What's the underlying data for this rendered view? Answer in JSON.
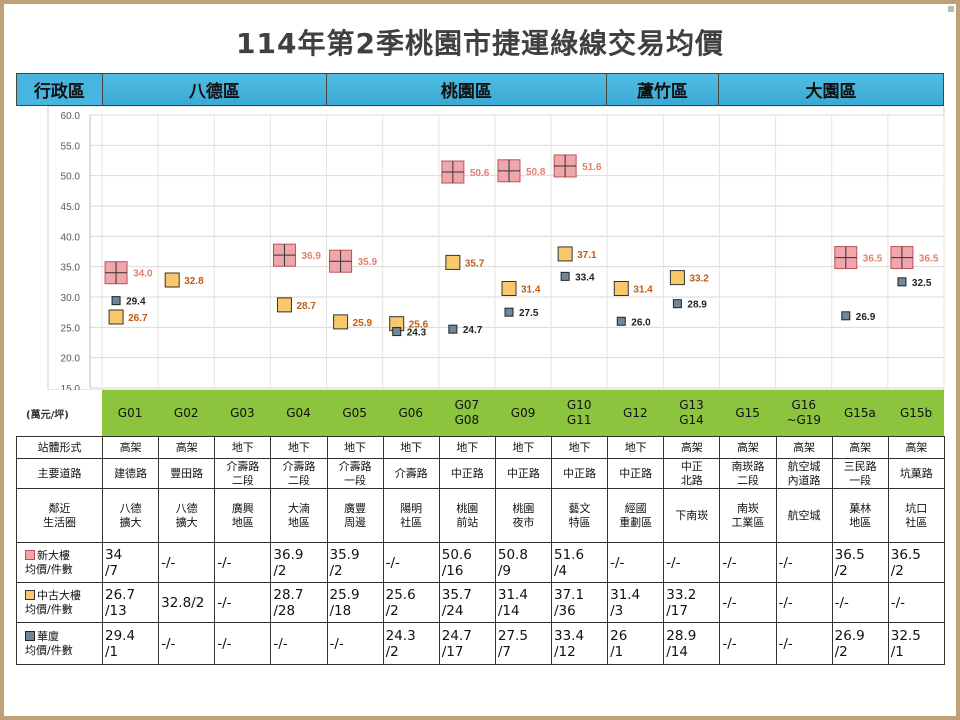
{
  "title": "114年第2季桃園市捷運綠線交易均價",
  "districts": {
    "label": "行政區",
    "items": [
      {
        "name": "八德區",
        "span": 4
      },
      {
        "name": "桃園區",
        "span": 5
      },
      {
        "name": "蘆竹區",
        "span": 2
      },
      {
        "name": "大園區",
        "span": 4
      }
    ]
  },
  "unit_label": "(萬元/坪)",
  "colors": {
    "new": "#f0a7ab",
    "mid": "#f8c86a",
    "old": "#6e8899",
    "band": "#8cc43e",
    "header": "#48b5df"
  },
  "chart_data": {
    "type": "scatter",
    "categories": [
      "G01",
      "G02",
      "G03",
      "G04",
      "G05",
      "G06",
      "G07\nG08",
      "G09",
      "G10\nG11",
      "G12",
      "G13\nG14",
      "G15",
      "G16\n~G19",
      "G15a",
      "G15b"
    ],
    "ylim": [
      15,
      60
    ],
    "yticks": [
      "15.0",
      "20.0",
      "25.0",
      "30.0",
      "35.0",
      "40.0",
      "45.0",
      "50.0",
      "55.0",
      "60.0"
    ],
    "grid": true,
    "series": [
      {
        "key": "new",
        "values": [
          34.0,
          null,
          null,
          36.9,
          35.9,
          null,
          50.6,
          50.8,
          51.6,
          null,
          null,
          null,
          null,
          36.5,
          36.5
        ],
        "labels": [
          "34.0",
          "",
          "",
          "36.9",
          "35.9",
          "",
          "50.6",
          "50.8",
          "51.6",
          "",
          "",
          "",
          "",
          "36.5",
          "36.5"
        ]
      },
      {
        "key": "mid",
        "values": [
          26.7,
          32.8,
          null,
          28.7,
          25.9,
          25.6,
          35.7,
          31.4,
          37.1,
          31.4,
          33.2,
          null,
          null,
          null,
          null
        ],
        "labels": [
          "26.7",
          "32.8",
          "",
          "28.7",
          "25.9",
          "25.6",
          "35.7",
          "31.4",
          "37.1",
          "31.4",
          "33.2",
          "",
          "",
          "",
          ""
        ]
      },
      {
        "key": "old",
        "values": [
          29.4,
          null,
          null,
          null,
          null,
          24.3,
          24.7,
          27.5,
          33.4,
          26.0,
          28.9,
          null,
          null,
          26.9,
          32.5
        ],
        "labels": [
          "29.4",
          "",
          "",
          "",
          "",
          "24.3",
          "24.7",
          "27.5",
          "33.4",
          "26.0",
          "28.9",
          "",
          "",
          "26.9",
          "32.5"
        ]
      }
    ]
  },
  "table": {
    "rows": [
      {
        "label": "站體形式",
        "cells": [
          "高架",
          "高架",
          "地下",
          "地下",
          "地下",
          "地下",
          "地下",
          "地下",
          "地下",
          "地下",
          "高架",
          "高架",
          "高架",
          "高架",
          "高架"
        ]
      },
      {
        "label": "主要道路",
        "cells": [
          "建德路",
          "豐田路",
          "介壽路\n二段",
          "介壽路\n二段",
          "介壽路\n一段",
          "介壽路",
          "中正路",
          "中正路",
          "中正路",
          "中正路",
          "中正\n北路",
          "南崁路\n二段",
          "航空城\n內道路",
          "三民路\n一段",
          "坑菓路"
        ]
      },
      {
        "label": "鄰近\n生活圈",
        "cells": [
          "八德\n擴大",
          "八德\n擴大",
          "廣興\n地區",
          "大湳\n地區",
          "廣豐\n周邊",
          "陽明\n社區",
          "桃園\n前站",
          "桃園\n夜市",
          "藝文\n特區",
          "經國\n重劃區",
          "下南崁",
          "南崁\n工業區",
          "航空城",
          "菓林\n地區",
          "坑口\n社區"
        ]
      },
      {
        "label": "新大樓\n均價/件數",
        "sym": "new",
        "cells": [
          "34\n/7",
          "-/-",
          "-/-",
          "36.9\n/2",
          "35.9\n/2",
          "-/-",
          "50.6\n/16",
          "50.8\n/9",
          "51.6\n/4",
          "-/-",
          "-/-",
          "-/-",
          "-/-",
          "36.5\n/2",
          "36.5\n/2"
        ]
      },
      {
        "label": "中古大樓\n均價/件數",
        "sym": "mid",
        "cells": [
          "26.7\n/13",
          "32.8/2",
          "-/-",
          "28.7\n/28",
          "25.9\n/18",
          "25.6\n/2",
          "35.7\n/24",
          "31.4\n/14",
          "37.1\n/36",
          "31.4\n/3",
          "33.2\n/17",
          "-/-",
          "-/-",
          "-/-",
          "-/-"
        ]
      },
      {
        "label": "華廈\n均價/件數",
        "sym": "old",
        "cells": [
          "29.4\n/1",
          "-/-",
          "-/-",
          "-/-",
          "-/-",
          "24.3\n/2",
          "24.7\n/17",
          "27.5\n/7",
          "33.4\n/12",
          "26\n/1",
          "28.9\n/14",
          "-/-",
          "-/-",
          "26.9\n/2",
          "32.5\n/1"
        ]
      }
    ]
  }
}
